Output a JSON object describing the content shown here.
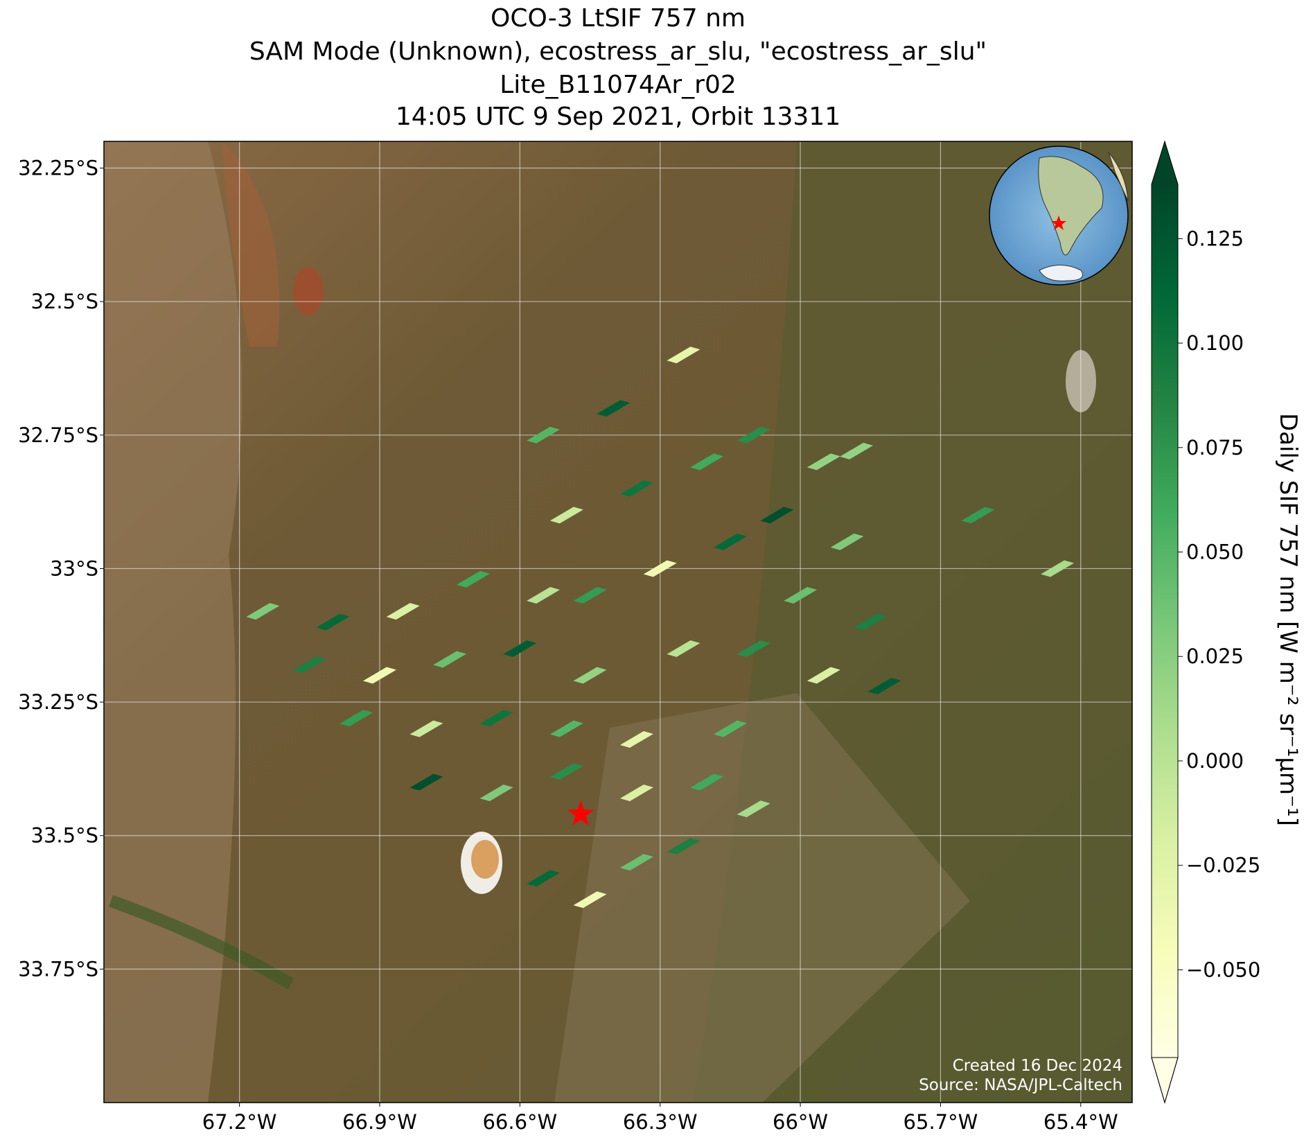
{
  "chart_data": {
    "type": "map",
    "title": [
      "OCO-3 LtSIF 757 nm",
      "SAM Mode (Unknown), ecostress_ar_slu, \"ecostress_ar_slu\"",
      "Lite_B11074Ar_r02",
      "14:05 UTC 9 Sep 2021, Orbit 13311"
    ],
    "xlim": [
      -67.49,
      -65.29
    ],
    "ylim": [
      -34.0,
      -32.2
    ],
    "xticks": [
      {
        "value": -67.2,
        "label": "67.2°W"
      },
      {
        "value": -66.9,
        "label": "66.9°W"
      },
      {
        "value": -66.6,
        "label": "66.6°W"
      },
      {
        "value": -66.3,
        "label": "66.3°W"
      },
      {
        "value": -66.0,
        "label": "66°W"
      },
      {
        "value": -65.7,
        "label": "65.7°W"
      },
      {
        "value": -65.4,
        "label": "65.4°W"
      }
    ],
    "yticks": [
      {
        "value": -32.25,
        "label": "32.25°S"
      },
      {
        "value": -32.5,
        "label": "32.5°S"
      },
      {
        "value": -32.75,
        "label": "32.75°S"
      },
      {
        "value": -33.0,
        "label": "33°S"
      },
      {
        "value": -33.25,
        "label": "33.25°S"
      },
      {
        "value": -33.5,
        "label": "33.5°S"
      },
      {
        "value": -33.75,
        "label": "33.75°S"
      }
    ],
    "grid": true,
    "points": {
      "lon": [
        -67.15,
        -67.0,
        -66.85,
        -66.7,
        -66.55,
        -67.05,
        -66.9,
        -66.75,
        -66.6,
        -66.45,
        -66.95,
        -66.8,
        -66.65,
        -66.5,
        -66.35,
        -66.8,
        -66.65,
        -66.5,
        -66.35,
        -66.2,
        -66.55,
        -66.45,
        -66.35,
        -66.25,
        -66.1,
        -66.55,
        -66.4,
        -66.25,
        -66.1,
        -65.95,
        -66.5,
        -66.35,
        -66.2,
        -66.05,
        -65.9,
        -66.45,
        -66.3,
        -66.15,
        -66.0,
        -65.85,
        -66.25,
        -66.1,
        -65.95,
        -65.82,
        -66.15,
        -65.88,
        -65.62,
        -65.45
      ],
      "lat": [
        -33.08,
        -33.1,
        -33.08,
        -33.02,
        -33.05,
        -33.18,
        -33.2,
        -33.17,
        -33.15,
        -33.2,
        -33.28,
        -33.3,
        -33.28,
        -33.3,
        -33.32,
        -33.4,
        -33.42,
        -33.38,
        -33.42,
        -33.4,
        -33.58,
        -33.62,
        -33.55,
        -33.52,
        -33.45,
        -32.75,
        -32.7,
        -32.6,
        -32.75,
        -32.8,
        -32.9,
        -32.85,
        -32.8,
        -32.9,
        -32.95,
        -33.05,
        -33.0,
        -32.95,
        -33.05,
        -33.1,
        -33.15,
        -33.15,
        -33.2,
        -33.22,
        -33.3,
        -32.78,
        -32.9,
        -33.0
      ],
      "values": [
        0.03,
        0.11,
        -0.02,
        0.06,
        0.0,
        0.09,
        -0.04,
        0.04,
        0.12,
        0.02,
        0.07,
        -0.01,
        0.1,
        0.05,
        -0.03,
        0.13,
        0.03,
        0.08,
        -0.02,
        0.06,
        0.11,
        -0.04,
        0.04,
        0.09,
        0.01,
        0.05,
        0.12,
        -0.03,
        0.08,
        0.02,
        -0.01,
        0.1,
        0.06,
        0.13,
        0.03,
        0.07,
        -0.04,
        0.11,
        0.04,
        0.09,
        0.0,
        0.08,
        -0.02,
        0.12,
        0.05,
        0.02,
        0.07,
        0.01
      ]
    },
    "target": {
      "lon": -66.47,
      "lat": -33.46
    },
    "colormap": [
      "#ffffe5",
      "#f7fcb9",
      "#d9f0a3",
      "#addd8e",
      "#78c679",
      "#41ab5d",
      "#238443",
      "#006837",
      "#004529"
    ],
    "clim": [
      -0.071,
      0.138
    ],
    "colorbar_ticks": [
      0.125,
      {
        "value": 0.1,
        "label": "0.100"
      },
      0.075,
      {
        "value": 0.05,
        "label": "0.050"
      },
      0.025,
      {
        "value": 0.0,
        "label": "0.000"
      },
      {
        "value": -0.025,
        "label": "−0.025"
      },
      {
        "value": -0.05,
        "label": "−0.050"
      }
    ],
    "colorbar_label": "Daily SIF 757 nm [W m⁻² sr⁻¹µm⁻¹]",
    "credits": [
      "Created 16 Dec 2024",
      "Source: NASA/JPL-Caltech"
    ]
  }
}
